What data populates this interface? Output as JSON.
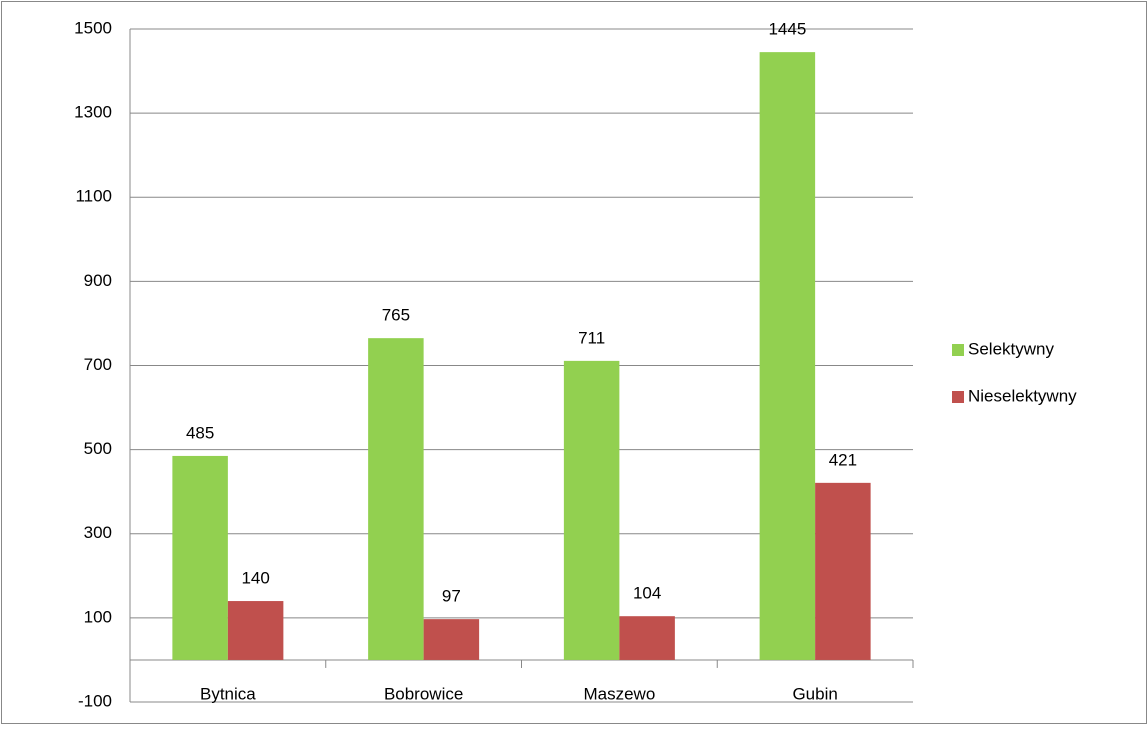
{
  "chart_data": {
    "type": "bar",
    "categories": [
      "Bytnica",
      "Bobrowice",
      "Maszewo",
      "Gubin"
    ],
    "series": [
      {
        "name": "Selektywny",
        "color": "#92d050",
        "values": [
          485,
          765,
          711,
          1445
        ]
      },
      {
        "name": "Nieselektywny",
        "color": "#c0504d",
        "values": [
          140,
          97,
          104,
          421
        ]
      }
    ],
    "ylim": [
      -100,
      1500
    ],
    "yticks": [
      -100,
      100,
      300,
      500,
      700,
      900,
      1100,
      1300,
      1500
    ],
    "grid": true,
    "legend": "right"
  }
}
